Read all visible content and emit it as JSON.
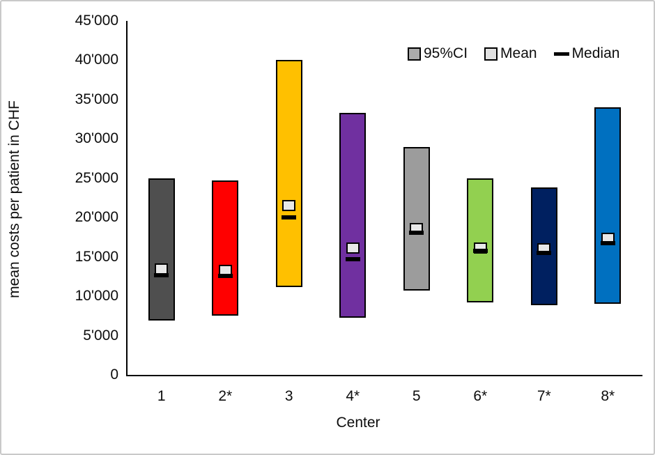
{
  "figure": {
    "y_axis_title": "mean costs per patient in CHF",
    "x_axis_title": "Center"
  },
  "legend": {
    "ci_label": "95%CI",
    "mean_label": "Mean",
    "median_label": "Median"
  },
  "colors": {
    "axis": "#000000",
    "frame_border": "#c9c9c9",
    "mean_marker_fill": "#e8e8e8",
    "median_marker": "#000000",
    "legend_ci_swatch": "#ababab",
    "legend_mean_swatch": "#e2e2e2"
  },
  "chart_data": {
    "type": "bar",
    "subtype": "floating-range-bars-with-mean-and-median-markers",
    "title": "",
    "xlabel": "Center",
    "ylabel": "mean costs per patient in CHF",
    "ylim": [
      0,
      45000
    ],
    "y_tick_step": 5000,
    "y_tick_labels": [
      "0",
      "5'000",
      "10'000",
      "15'000",
      "20'000",
      "25'000",
      "30'000",
      "35'000",
      "40'000",
      "45'000"
    ],
    "grid": false,
    "legend_position": "top-right-inside",
    "categories": [
      "1",
      "2*",
      "3",
      "4*",
      "5",
      "6*",
      "7*",
      "8*"
    ],
    "series": [
      {
        "name": "95%CI lower",
        "values": [
          6900,
          7500,
          11200,
          7300,
          10700,
          9200,
          8900,
          9000
        ]
      },
      {
        "name": "95%CI upper",
        "values": [
          25000,
          24700,
          40000,
          33300,
          29000,
          25000,
          23800,
          34000
        ]
      },
      {
        "name": "Mean",
        "values": [
          13500,
          13300,
          21500,
          16100,
          18600,
          16100,
          16000,
          17400
        ]
      },
      {
        "name": "Median",
        "values": [
          12700,
          12600,
          20000,
          14700,
          18100,
          15800,
          15500,
          16700
        ]
      }
    ],
    "bar_colors": [
      "#4f4f4f",
      "#ff0000",
      "#ffc000",
      "#7030a0",
      "#9c9c9c",
      "#92d050",
      "#002060",
      "#0070c0"
    ],
    "bar_patterns": [
      true,
      false,
      false,
      false,
      true,
      false,
      false,
      false
    ]
  }
}
